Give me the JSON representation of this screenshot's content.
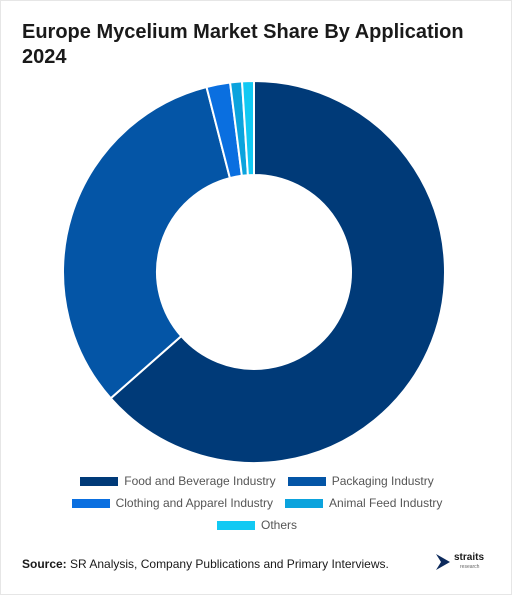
{
  "title": "Europe Mycelium Market Share By Application 2024",
  "source_label": "Source:",
  "source_text": "SR Analysis, Company Publications and Primary Interviews.",
  "logo": {
    "name": "straits",
    "sub": "research"
  },
  "chart_data": {
    "type": "pie",
    "style": "donut",
    "categories": [
      "Food and Beverage Industry",
      "Packaging Industry",
      "Clothing and Apparel Industry",
      "Animal Feed Industry",
      "Others"
    ],
    "values": [
      63.5,
      32.5,
      2.0,
      1.0,
      1.0
    ],
    "colors": [
      "#003a78",
      "#0455a6",
      "#0a6fe0",
      "#0ba3dd",
      "#12c9f3"
    ],
    "legend_position": "bottom"
  }
}
